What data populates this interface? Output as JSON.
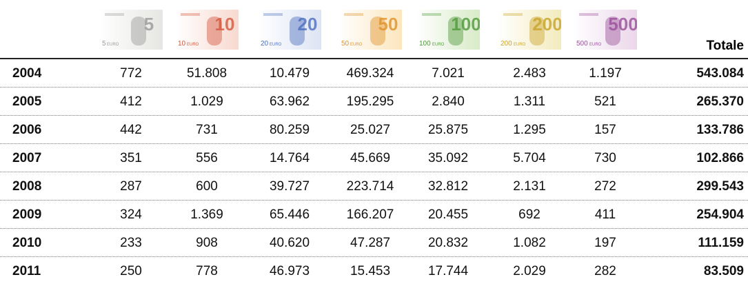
{
  "table": {
    "notes": [
      {
        "value": "5",
        "color": "#9a9a9a",
        "light": "#e6e6e3"
      },
      {
        "value": "10",
        "color": "#d4573d",
        "light": "#f7d9cf"
      },
      {
        "value": "20",
        "color": "#4d6fbf",
        "light": "#dde4f4"
      },
      {
        "value": "50",
        "color": "#e0922a",
        "light": "#fbe6bd"
      },
      {
        "value": "100",
        "color": "#4f9a3a",
        "light": "#d8ebc8"
      },
      {
        "value": "200",
        "color": "#c9a42a",
        "light": "#f3ebbd"
      },
      {
        "value": "500",
        "color": "#9a4f9a",
        "light": "#ebd7ea"
      }
    ],
    "note_text": "EURO",
    "total_header": "Totale",
    "rows": [
      [
        "2004",
        "772",
        "51.808",
        "10.479",
        "469.324",
        "7.021",
        "2.483",
        "1.197",
        "543.084"
      ],
      [
        "2005",
        "412",
        "1.029",
        "63.962",
        "195.295",
        "2.840",
        "1.311",
        "521",
        "265.370"
      ],
      [
        "2006",
        "442",
        "731",
        "80.259",
        "25.027",
        "25.875",
        "1.295",
        "157",
        "133.786"
      ],
      [
        "2007",
        "351",
        "556",
        "14.764",
        "45.669",
        "35.092",
        "5.704",
        "730",
        "102.866"
      ],
      [
        "2008",
        "287",
        "600",
        "39.727",
        "223.714",
        "32.812",
        "2.131",
        "272",
        "299.543"
      ],
      [
        "2009",
        "324",
        "1.369",
        "65.446",
        "166.207",
        "20.455",
        "692",
        "411",
        "254.904"
      ],
      [
        "2010",
        "233",
        "908",
        "40.620",
        "47.287",
        "20.832",
        "1.082",
        "197",
        "111.159"
      ],
      [
        "2011",
        "250",
        "778",
        "46.973",
        "15.453",
        "17.744",
        "2.029",
        "282",
        "83.509"
      ]
    ]
  }
}
